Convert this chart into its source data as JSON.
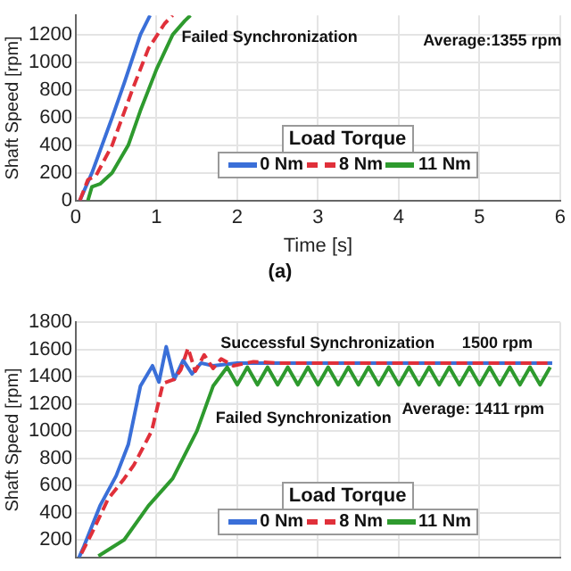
{
  "chart_data": [
    {
      "type": "line",
      "title": "(a)",
      "xlabel": "Time [s]",
      "ylabel": "Shaft Speed [rpm]",
      "legend_title": "Load Torque",
      "legend": "bottom right",
      "grid": true,
      "marker": "none",
      "xlim": [
        0,
        6
      ],
      "xticks": [
        0,
        1,
        2,
        3,
        4,
        5,
        6
      ],
      "ylim": [
        0,
        1340
      ],
      "yticks": [
        0,
        200,
        400,
        600,
        800,
        1000,
        1200
      ],
      "annotations": [
        "Failed Synchronization",
        "Average:1355 rpm"
      ],
      "series": [
        {
          "name": "0 Nm",
          "color": "#3a6fd8",
          "line_style": "solid",
          "x": [
            0.05,
            0.2,
            0.45,
            0.6,
            0.8,
            0.92
          ],
          "values": [
            0,
            200,
            600,
            850,
            1200,
            1340
          ]
        },
        {
          "name": "8 Nm",
          "color": "#e0303a",
          "line_style": "dashed",
          "x": [
            0.05,
            0.15,
            0.25,
            0.45,
            0.7,
            0.9,
            1.1,
            1.2
          ],
          "values": [
            0,
            150,
            180,
            400,
            800,
            1100,
            1280,
            1340
          ]
        },
        {
          "name": "11 Nm",
          "color": "#2e9a2e",
          "line_style": "solid",
          "x": [
            0.15,
            0.2,
            0.3,
            0.45,
            0.65,
            0.8,
            0.9,
            1.0,
            1.2,
            1.35,
            1.42
          ],
          "values": [
            0,
            100,
            120,
            200,
            400,
            650,
            800,
            950,
            1200,
            1300,
            1340
          ]
        }
      ]
    },
    {
      "type": "line",
      "ylabel": "Shaft Speed [rpm]",
      "legend_title": "Load Torque",
      "legend": "bottom right",
      "grid": true,
      "marker": "none",
      "tick_labels": "y",
      "xlim": [
        0,
        6
      ],
      "xticks": [
        0,
        1,
        2,
        3,
        4,
        5,
        6
      ],
      "ylim": [
        70,
        1800
      ],
      "yticks": [
        200,
        400,
        600,
        800,
        1000,
        1200,
        1400,
        1600,
        1800
      ],
      "annotations": [
        "Successful Synchronization",
        "1500 rpm",
        "Average: 1411 rpm",
        "Failed Synchronization"
      ],
      "series": [
        {
          "name": "0 Nm",
          "color": "#3a6fd8",
          "line_style": "solid",
          "x": [
            0.04,
            0.1,
            0.3,
            0.5,
            0.65,
            0.8,
            0.95,
            1.03,
            1.12,
            1.22,
            1.33,
            1.44,
            1.55,
            1.7,
            2.0,
            2.5,
            5.9
          ],
          "values": [
            70,
            150,
            450,
            670,
            900,
            1330,
            1480,
            1360,
            1620,
            1380,
            1520,
            1420,
            1500,
            1480,
            1500,
            1500,
            1500
          ]
        },
        {
          "name": "8 Nm",
          "color": "#e0303a",
          "line_style": "dashed",
          "x": [
            0.07,
            0.2,
            0.4,
            0.6,
            0.72,
            0.94,
            1.08,
            1.22,
            1.3,
            1.39,
            1.48,
            1.59,
            1.7,
            1.8,
            1.95,
            2.2,
            2.5,
            5.9
          ],
          "values": [
            100,
            250,
            500,
            650,
            750,
            1000,
            1350,
            1380,
            1450,
            1610,
            1440,
            1560,
            1460,
            1530,
            1480,
            1510,
            1500,
            1500
          ]
        },
        {
          "name": "11 Nm",
          "color": "#2e9a2e",
          "line_style": "solid",
          "x": [
            0.28,
            0.6,
            0.9,
            1.2,
            1.5,
            1.7,
            1.875,
            2.0,
            2.125,
            2.25,
            2.375,
            2.5,
            2.625,
            2.75,
            2.875,
            3.0,
            3.125,
            3.25,
            3.375,
            3.5,
            3.625,
            3.75,
            3.875,
            4.0,
            4.125,
            4.25,
            4.375,
            4.5,
            4.625,
            4.75,
            4.875,
            5.0,
            5.125,
            5.25,
            5.375,
            5.5,
            5.625,
            5.75,
            5.875
          ],
          "values": [
            80,
            200,
            450,
            650,
            1000,
            1330,
            1470,
            1340,
            1470,
            1340,
            1470,
            1340,
            1470,
            1340,
            1470,
            1340,
            1470,
            1340,
            1470,
            1340,
            1470,
            1340,
            1470,
            1340,
            1470,
            1340,
            1470,
            1340,
            1470,
            1340,
            1470,
            1340,
            1470,
            1340,
            1470,
            1340,
            1470,
            1340,
            1470
          ]
        }
      ]
    }
  ]
}
